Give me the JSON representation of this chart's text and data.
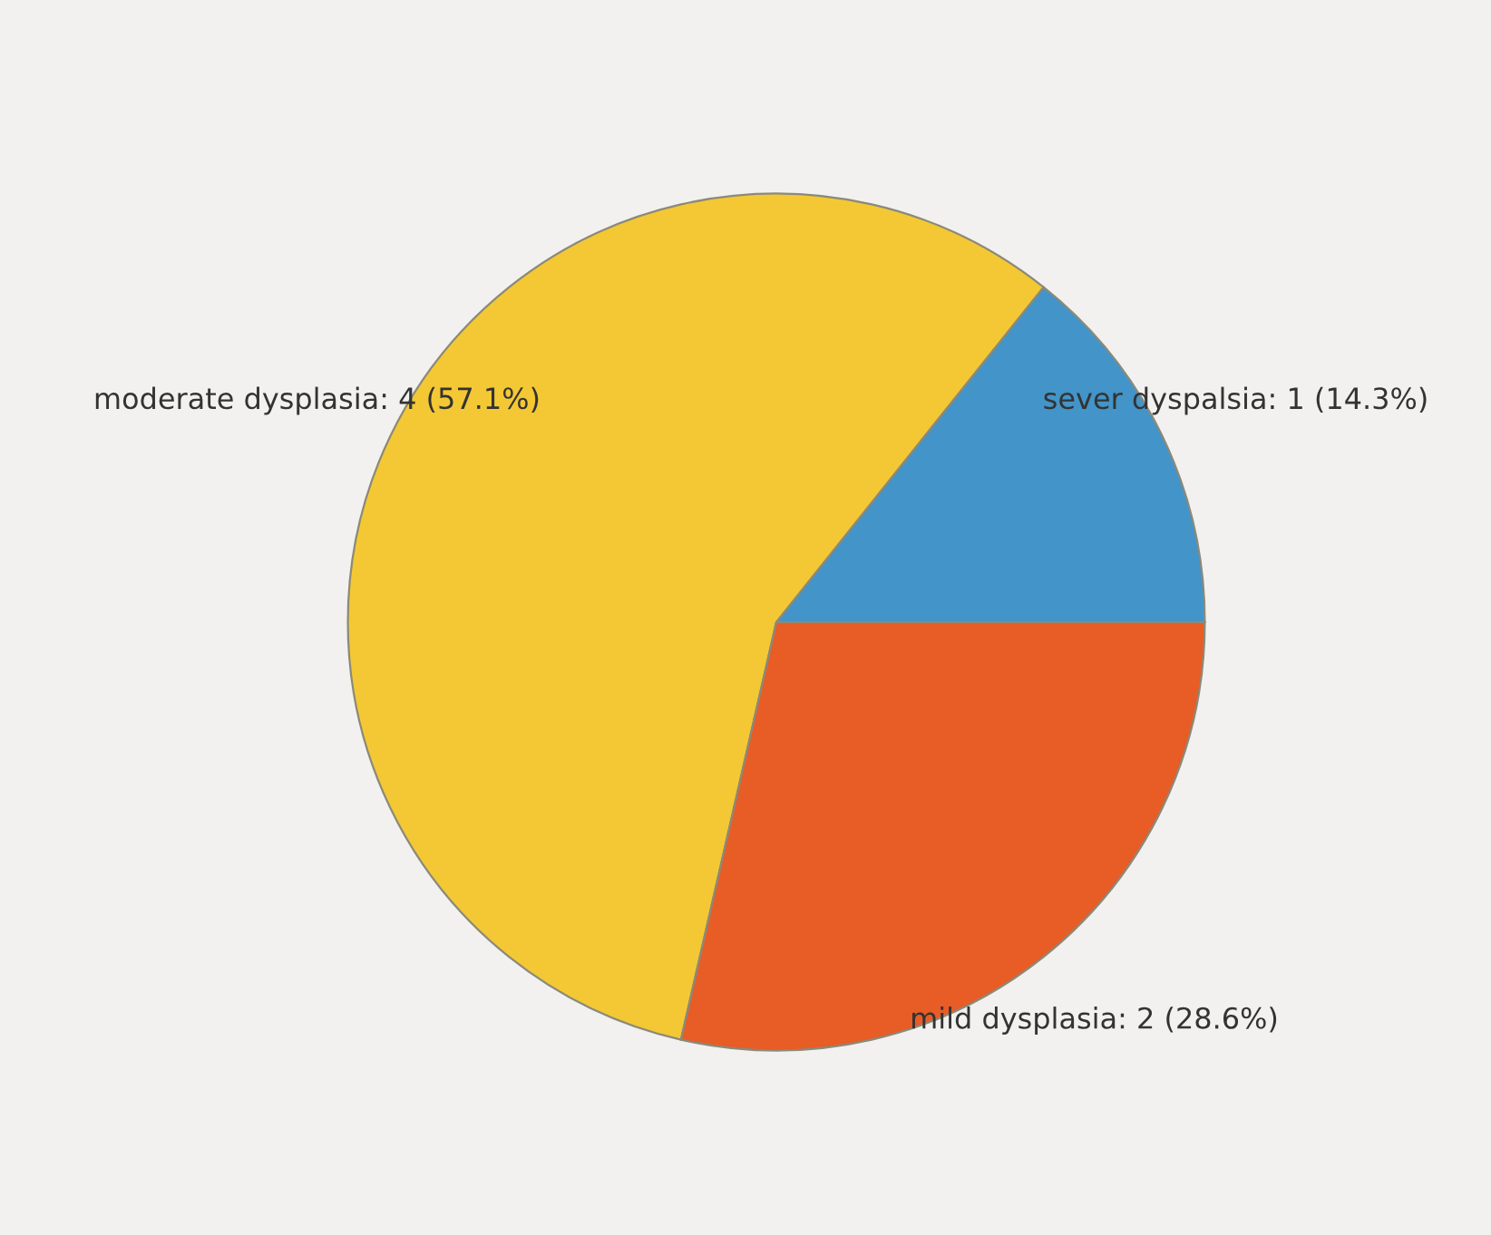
{
  "chart_data": {
    "type": "pie",
    "categories": [
      "sever dyspalsia",
      "moderate dysplasia",
      "mild dysplasia"
    ],
    "values": [
      1,
      4,
      2
    ],
    "value_labels": [
      "1 (14.3%)",
      "4 (57.1%)",
      "2 (28.6%)"
    ],
    "colors": [
      "#4394c8",
      "#f4c834",
      "#e85c25"
    ],
    "legend": false
  }
}
